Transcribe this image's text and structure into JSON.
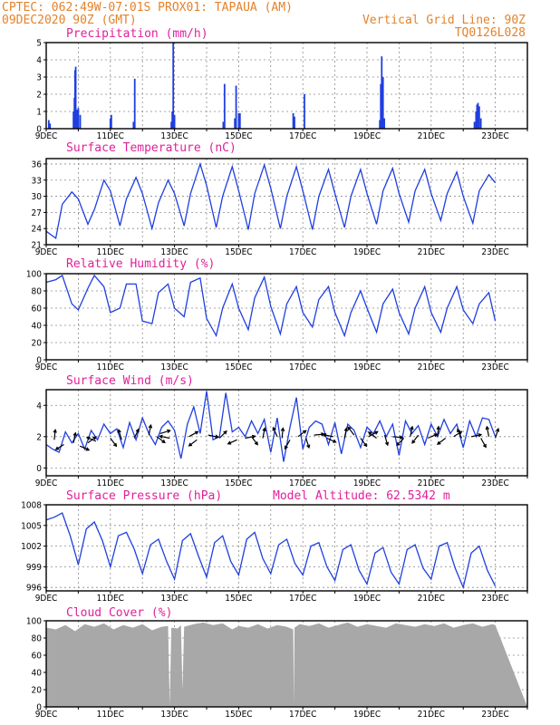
{
  "header": {
    "line1": "CPTEC:   062:49W-07:01S   PROX01: TAPAUA (AM)",
    "date": "09DEC2020 90Z (GMT)",
    "vertical_grid": "Vertical Grid Line: 90Z",
    "run_id": "TQ0126L028"
  },
  "x_labels": [
    "9DEC",
    "11DEC",
    "13DEC",
    "15DEC",
    "17DEC",
    "19DEC",
    "21DEC",
    "23DEC"
  ],
  "colors": {
    "series": "#1f3fe0",
    "cloud": "#a8a8a8",
    "title": "#e0209a",
    "header": "#e4822a"
  },
  "chart_data": [
    {
      "type": "bar",
      "title": "Precipitation (mm/h)",
      "ylim": [
        0,
        5
      ],
      "yticks": [
        "0",
        "1",
        "2",
        "3",
        "4",
        "5"
      ],
      "days": 15,
      "x": [
        0.08,
        0.12,
        0.85,
        0.88,
        0.9,
        0.92,
        0.95,
        1.0,
        1.06,
        2.0,
        2.03,
        2.72,
        2.76,
        3.9,
        3.93,
        3.96,
        4.0,
        5.52,
        5.56,
        5.88,
        5.92,
        6.0,
        6.04,
        7.7,
        7.74,
        8.05,
        10.4,
        10.43,
        10.46,
        10.5,
        10.54,
        13.35,
        13.4,
        13.43,
        13.46,
        13.5,
        13.55
      ],
      "values": [
        0.5,
        0.3,
        1.0,
        1.8,
        3.4,
        3.6,
        1.1,
        1.2,
        0.8,
        0.6,
        0.8,
        0.4,
        2.9,
        0.4,
        1.0,
        5.0,
        0.8,
        0.4,
        2.6,
        0.6,
        2.5,
        0.9,
        0.9,
        0.9,
        0.7,
        2.0,
        0.5,
        2.6,
        4.2,
        3.0,
        0.6,
        0.4,
        1.0,
        1.4,
        1.5,
        1.3,
        0.6
      ]
    },
    {
      "type": "line",
      "title": "Surface Temperature (nC)",
      "ylim": [
        21,
        37
      ],
      "yticks": [
        "21",
        "24",
        "27",
        "30",
        "33",
        "36"
      ],
      "days": 15,
      "x": [
        0.0,
        0.3,
        0.5,
        0.8,
        1.0,
        1.3,
        1.5,
        1.8,
        2.0,
        2.3,
        2.5,
        2.8,
        3.0,
        3.3,
        3.5,
        3.8,
        4.0,
        4.3,
        4.5,
        4.8,
        5.0,
        5.3,
        5.5,
        5.8,
        6.0,
        6.3,
        6.5,
        6.8,
        7.0,
        7.3,
        7.5,
        7.8,
        8.0,
        8.3,
        8.5,
        8.8,
        9.0,
        9.3,
        9.5,
        9.8,
        10.0,
        10.3,
        10.5,
        10.8,
        11.0,
        11.3,
        11.5,
        11.8,
        12.0,
        12.3,
        12.5,
        12.8,
        13.0,
        13.3,
        13.5,
        13.8,
        14.0
      ],
      "values": [
        23.5,
        22.2,
        28.5,
        30.8,
        29.5,
        24.8,
        27.5,
        33.0,
        31.0,
        24.5,
        29.5,
        33.5,
        30.5,
        24.0,
        28.8,
        33.0,
        30.5,
        24.5,
        30.5,
        36.0,
        32.0,
        24.2,
        30.0,
        35.5,
        31.0,
        23.8,
        30.5,
        35.8,
        31.5,
        24.0,
        30.0,
        35.5,
        31.0,
        23.8,
        30.0,
        35.0,
        30.5,
        24.2,
        30.0,
        35.0,
        30.5,
        24.8,
        31.0,
        35.2,
        30.5,
        25.2,
        31.0,
        35.0,
        30.5,
        25.5,
        30.5,
        34.5,
        30.0,
        25.0,
        31.0,
        34.0,
        32.5
      ]
    },
    {
      "type": "line",
      "title": "Relative Humidity (%)",
      "ylim": [
        0,
        100
      ],
      "yticks": [
        "0",
        "20",
        "40",
        "60",
        "80",
        "100"
      ],
      "days": 15,
      "x": [
        0.0,
        0.3,
        0.5,
        0.8,
        1.0,
        1.3,
        1.5,
        1.8,
        2.0,
        2.3,
        2.5,
        2.8,
        3.0,
        3.3,
        3.5,
        3.8,
        4.0,
        4.3,
        4.5,
        4.8,
        5.0,
        5.3,
        5.5,
        5.8,
        6.0,
        6.3,
        6.5,
        6.8,
        7.0,
        7.3,
        7.5,
        7.8,
        8.0,
        8.3,
        8.5,
        8.8,
        9.0,
        9.3,
        9.5,
        9.8,
        10.0,
        10.3,
        10.5,
        10.8,
        11.0,
        11.3,
        11.5,
        11.8,
        12.0,
        12.3,
        12.5,
        12.8,
        13.0,
        13.3,
        13.5,
        13.8,
        14.0
      ],
      "values": [
        90,
        93,
        98,
        65,
        58,
        83,
        98,
        85,
        55,
        60,
        88,
        88,
        45,
        42,
        78,
        88,
        60,
        50,
        90,
        95,
        48,
        28,
        60,
        88,
        60,
        35,
        72,
        96,
        62,
        30,
        65,
        85,
        55,
        38,
        70,
        85,
        55,
        28,
        55,
        80,
        60,
        32,
        65,
        82,
        55,
        30,
        60,
        85,
        55,
        32,
        60,
        85,
        58,
        42,
        65,
        78,
        45
      ]
    },
    {
      "type": "line",
      "title": "Surface Wind (m/s)",
      "ylim": [
        -0.5,
        5.0
      ],
      "yticks": [
        "0",
        "2",
        "4"
      ],
      "days": 15,
      "x": [
        0.0,
        0.2,
        0.4,
        0.6,
        0.8,
        1.0,
        1.2,
        1.4,
        1.6,
        1.8,
        2.0,
        2.2,
        2.4,
        2.6,
        2.8,
        3.0,
        3.2,
        3.4,
        3.6,
        3.8,
        4.0,
        4.2,
        4.4,
        4.6,
        4.8,
        5.0,
        5.2,
        5.4,
        5.6,
        5.8,
        6.0,
        6.2,
        6.4,
        6.6,
        6.8,
        7.0,
        7.2,
        7.4,
        7.6,
        7.8,
        8.0,
        8.2,
        8.4,
        8.6,
        8.8,
        9.0,
        9.2,
        9.4,
        9.6,
        9.8,
        10.0,
        10.2,
        10.4,
        10.6,
        10.8,
        11.0,
        11.2,
        11.4,
        11.6,
        11.8,
        12.0,
        12.2,
        12.4,
        12.6,
        12.8,
        13.0,
        13.2,
        13.4,
        13.6,
        13.8,
        14.0
      ],
      "values": [
        1.5,
        1.2,
        1.0,
        2.3,
        1.6,
        2.2,
        1.2,
        2.4,
        1.8,
        2.8,
        2.2,
        2.5,
        1.3,
        2.9,
        1.8,
        3.2,
        2.2,
        1.5,
        2.6,
        3.0,
        2.4,
        0.6,
        2.8,
        3.9,
        2.2,
        4.9,
        1.8,
        2.0,
        4.8,
        2.3,
        2.6,
        2.0,
        3.0,
        2.2,
        3.1,
        1.0,
        3.2,
        0.4,
        2.6,
        4.5,
        1.2,
        2.6,
        3.0,
        2.8,
        1.5,
        2.9,
        0.9,
        2.8,
        2.4,
        1.3,
        2.6,
        2.2,
        3.0,
        2.0,
        2.8,
        0.8,
        3.0,
        2.2,
        2.7,
        1.5,
        2.8,
        2.0,
        3.1,
        2.2,
        2.8,
        1.3,
        3.0,
        2.0,
        3.2,
        3.1,
        2.0
      ],
      "vectors": [
        [
          0.25,
          1.2,
          0.1,
          1.0
        ],
        [
          0.55,
          0.9,
          -0.8,
          -0.5
        ],
        [
          0.85,
          1.0,
          0.2,
          1.0
        ],
        [
          1.05,
          0.8,
          0.9,
          -0.4
        ],
        [
          1.3,
          1.0,
          0.8,
          0.6
        ],
        [
          1.55,
          1.1,
          -0.9,
          0.4
        ],
        [
          2.0,
          1.3,
          0.6,
          -0.8
        ],
        [
          2.35,
          1.2,
          -0.3,
          1.0
        ],
        [
          2.75,
          1.3,
          0.4,
          0.9
        ],
        [
          3.2,
          1.5,
          0.2,
          1.0
        ],
        [
          3.45,
          1.4,
          0.8,
          -0.6
        ],
        [
          3.55,
          1.6,
          1.0,
          0.3
        ],
        [
          3.85,
          1.3,
          -1.0,
          0.2
        ],
        [
          4.45,
          1.4,
          0.9,
          0.5
        ],
        [
          4.7,
          1.2,
          -0.8,
          -0.6
        ],
        [
          5.05,
          1.5,
          1.0,
          -0.2
        ],
        [
          5.4,
          1.3,
          0.7,
          0.7
        ],
        [
          5.95,
          1.2,
          -0.9,
          -0.4
        ],
        [
          6.2,
          1.3,
          1.0,
          0.2
        ],
        [
          6.4,
          1.4,
          0.6,
          -0.8
        ],
        [
          6.75,
          1.3,
          0.2,
          1.0
        ],
        [
          7.2,
          1.4,
          -0.4,
          0.9
        ],
        [
          7.35,
          1.3,
          0.1,
          1.0
        ],
        [
          7.6,
          1.2,
          -0.5,
          -0.9
        ],
        [
          7.85,
          1.4,
          0.8,
          0.6
        ],
        [
          8.1,
          1.3,
          0.3,
          -0.95
        ],
        [
          8.35,
          1.5,
          1.0,
          0.1
        ],
        [
          8.75,
          1.3,
          0.9,
          -0.4
        ],
        [
          8.95,
          1.4,
          -1.0,
          0.2
        ],
        [
          9.3,
          1.3,
          0.2,
          1.0
        ],
        [
          9.6,
          1.5,
          -0.6,
          0.8
        ],
        [
          9.8,
          1.3,
          0.6,
          -0.8
        ],
        [
          10.05,
          1.4,
          0.9,
          0.5
        ],
        [
          10.3,
          1.3,
          -0.8,
          0.6
        ],
        [
          10.55,
          1.5,
          0.3,
          -1.0
        ],
        [
          10.8,
          1.4,
          1.0,
          -0.1
        ],
        [
          11.15,
          1.3,
          -0.7,
          -0.7
        ],
        [
          11.35,
          1.4,
          0.2,
          1.0
        ],
        [
          11.6,
          1.5,
          -0.6,
          -0.8
        ],
        [
          11.9,
          1.3,
          0.9,
          0.4
        ],
        [
          12.2,
          1.4,
          0.1,
          1.0
        ],
        [
          12.45,
          1.3,
          -0.8,
          -0.6
        ],
        [
          12.7,
          1.4,
          0.8,
          0.5
        ],
        [
          12.95,
          1.3,
          -0.4,
          0.9
        ],
        [
          13.25,
          1.4,
          1.0,
          0.2
        ],
        [
          13.55,
          1.3,
          0.5,
          -0.9
        ],
        [
          13.8,
          1.4,
          -0.2,
          1.0
        ],
        [
          14.0,
          1.3,
          0.3,
          0.95
        ]
      ]
    },
    {
      "type": "line",
      "title": "Surface Pressure (hPa)",
      "annotation": "Model Altitude: 62.5342 m",
      "ylim": [
        995.5,
        1008
      ],
      "yticks": [
        "996",
        "999",
        "1002",
        "1005",
        "1008"
      ],
      "days": 15,
      "x": [
        0.0,
        0.25,
        0.5,
        0.75,
        1.0,
        1.25,
        1.5,
        1.75,
        2.0,
        2.25,
        2.5,
        2.75,
        3.0,
        3.25,
        3.5,
        3.75,
        4.0,
        4.25,
        4.5,
        4.75,
        5.0,
        5.25,
        5.5,
        5.75,
        6.0,
        6.25,
        6.5,
        6.75,
        7.0,
        7.25,
        7.5,
        7.75,
        8.0,
        8.25,
        8.5,
        8.75,
        9.0,
        9.25,
        9.5,
        9.75,
        10.0,
        10.25,
        10.5,
        10.75,
        11.0,
        11.25,
        11.5,
        11.75,
        12.0,
        12.25,
        12.5,
        12.75,
        13.0,
        13.25,
        13.5,
        13.75,
        14.0
      ],
      "values": [
        1005.8,
        1006.2,
        1006.8,
        1003.5,
        999.3,
        1004.5,
        1005.5,
        1002.8,
        999.0,
        1003.5,
        1004.0,
        1001.5,
        998.0,
        1002.2,
        1003.0,
        999.8,
        997.2,
        1002.8,
        1003.8,
        1000.5,
        997.5,
        1002.5,
        1003.5,
        999.8,
        997.8,
        1003.0,
        1004.0,
        1000.2,
        998.0,
        1002.2,
        1003.0,
        999.5,
        997.8,
        1002.0,
        1002.5,
        999.0,
        997.0,
        1001.5,
        1002.2,
        998.5,
        996.5,
        1001.0,
        1001.8,
        998.2,
        996.5,
        1001.5,
        1002.2,
        998.8,
        997.2,
        1002.0,
        1002.5,
        998.8,
        996.0,
        1001.0,
        1002.0,
        998.5,
        996.2
      ]
    },
    {
      "type": "area",
      "title": "Cloud Cover (%)",
      "ylim": [
        0,
        100
      ],
      "yticks": [
        "0",
        "20",
        "40",
        "60",
        "80",
        "100"
      ],
      "days": 15,
      "x": [
        0.0,
        0.3,
        0.6,
        0.9,
        1.2,
        1.5,
        1.8,
        2.1,
        2.4,
        2.7,
        3.0,
        3.3,
        3.6,
        3.8,
        3.85,
        3.9,
        4.1,
        4.2,
        4.25,
        4.3,
        4.6,
        4.9,
        5.2,
        5.5,
        5.8,
        6.0,
        6.3,
        6.6,
        6.9,
        7.2,
        7.5,
        7.7,
        7.72,
        7.74,
        7.9,
        8.2,
        8.5,
        8.8,
        9.1,
        9.4,
        9.7,
        10.0,
        10.3,
        10.6,
        10.9,
        11.2,
        11.5,
        11.8,
        12.1,
        12.4,
        12.7,
        13.0,
        13.3,
        13.6,
        13.9,
        14.0
      ],
      "values": [
        92,
        90,
        95,
        88,
        96,
        93,
        97,
        90,
        95,
        92,
        96,
        89,
        93,
        94,
        2,
        92,
        91,
        95,
        20,
        93,
        96,
        98,
        95,
        97,
        90,
        94,
        92,
        96,
        91,
        95,
        93,
        90,
        3,
        92,
        96,
        94,
        97,
        92,
        95,
        98,
        93,
        96,
        94,
        92,
        97,
        95,
        93,
        96,
        94,
        97,
        92,
        95,
        97,
        93,
        96,
        95
      ]
    }
  ]
}
